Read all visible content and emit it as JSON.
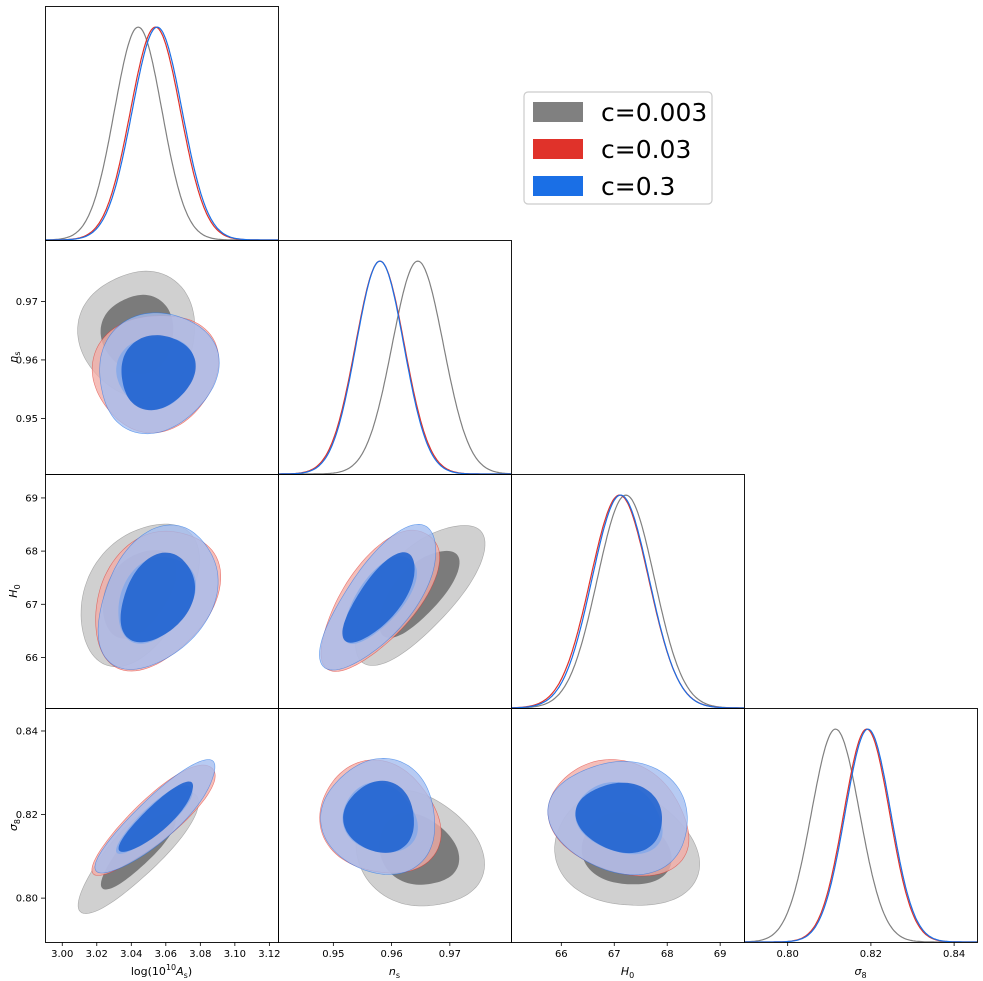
{
  "chart_data": {
    "type": "corner",
    "parameters": [
      {
        "key": "logA",
        "label_main": "log(10",
        "label_sup": "10",
        "label_rest": "A",
        "label_sub": "s",
        "label_close": ")",
        "range": [
          2.99,
          3.125
        ],
        "ticks": [
          "3.00",
          "3.02",
          "3.04",
          "3.06",
          "3.08",
          "3.10",
          "3.12"
        ]
      },
      {
        "key": "ns",
        "label_main": "n",
        "label_sub": "s",
        "range": [
          0.9405,
          0.9805
        ],
        "ticks": [
          "0.95",
          "0.96",
          "0.97"
        ]
      },
      {
        "key": "H0",
        "label_main": "H",
        "label_sub": "0",
        "range": [
          65.05,
          69.45
        ],
        "ticks": [
          "66",
          "67",
          "68",
          "69"
        ]
      },
      {
        "key": "sigma8",
        "label_main": "σ",
        "label_sub": "8",
        "range": [
          0.7895,
          0.8455
        ],
        "ticks": [
          "0.80",
          "0.82",
          "0.84"
        ]
      }
    ],
    "series": [
      {
        "name": "c=0.003",
        "color": "#808080",
        "fill_outer": "#c8c8c8",
        "fill_inner": "#6c6c6c",
        "mean": [
          3.044,
          0.9645,
          67.22,
          0.8115
        ],
        "sigma": [
          0.0138,
          0.0044,
          0.54,
          0.0058
        ],
        "corr": [
          [
            1,
            -0.05,
            0.35,
            0.82
          ],
          [
            -0.05,
            1,
            0.68,
            -0.22
          ],
          [
            0.35,
            0.68,
            1,
            -0.12
          ],
          [
            0.82,
            -0.22,
            -0.12,
            1
          ]
        ]
      },
      {
        "name": "c=0.03",
        "color": "#e0322a",
        "fill_outer": "#f2aca5",
        "fill_inner": "#1f62cf",
        "mean": [
          3.054,
          0.958,
          67.1,
          0.819
        ],
        "sigma": [
          0.0145,
          0.0042,
          0.55,
          0.0055
        ],
        "corr": [
          [
            1,
            0.1,
            0.33,
            0.87
          ],
          [
            0.1,
            1,
            0.7,
            -0.08
          ],
          [
            0.33,
            0.7,
            1,
            -0.18
          ],
          [
            0.87,
            -0.08,
            -0.18,
            1
          ]
        ]
      },
      {
        "name": "c=0.3",
        "color": "#1a6fe6",
        "fill_outer": "#a3bdf0",
        "fill_inner": "#1f62cf",
        "mean": [
          3.055,
          0.958,
          67.12,
          0.8193
        ],
        "sigma": [
          0.0145,
          0.0041,
          0.54,
          0.0055
        ],
        "corr": [
          [
            1,
            0.12,
            0.35,
            0.88
          ],
          [
            0.12,
            1,
            0.71,
            -0.06
          ],
          [
            0.35,
            0.71,
            1,
            -0.14
          ],
          [
            0.88,
            -0.06,
            -0.14,
            1
          ]
        ]
      }
    ],
    "legend": {
      "placement": "upper-right"
    }
  }
}
